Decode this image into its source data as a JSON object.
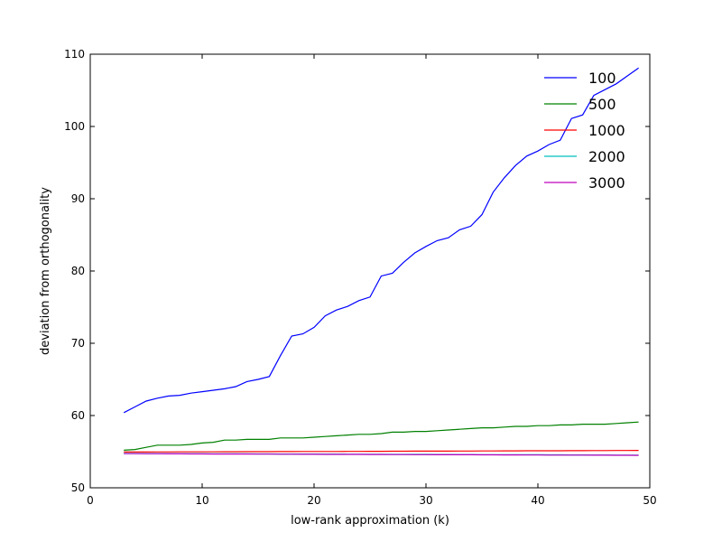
{
  "chart_data": {
    "type": "line",
    "title": "",
    "xlabel": "low-rank approximation (k)",
    "ylabel": "deviation from orthogonality",
    "xlim": [
      0,
      50
    ],
    "ylim": [
      50,
      110
    ],
    "xticks": [
      0,
      10,
      20,
      30,
      40,
      50
    ],
    "yticks": [
      50,
      60,
      70,
      80,
      90,
      100,
      110
    ],
    "grid": false,
    "legend_position": "top-right",
    "x": [
      3,
      4,
      5,
      6,
      7,
      8,
      9,
      10,
      11,
      12,
      13,
      14,
      15,
      16,
      17,
      18,
      19,
      20,
      21,
      22,
      23,
      24,
      25,
      26,
      27,
      28,
      29,
      30,
      31,
      32,
      33,
      34,
      35,
      36,
      37,
      38,
      39,
      40,
      41,
      42,
      43,
      44,
      45,
      46,
      47,
      48,
      49
    ],
    "series": [
      {
        "name": "100",
        "color": "#0000ff",
        "values": [
          60.4,
          61.2,
          62.0,
          62.4,
          62.7,
          62.8,
          63.1,
          63.3,
          63.5,
          63.7,
          64.0,
          64.7,
          65.0,
          65.4,
          68.3,
          71.0,
          71.3,
          72.2,
          73.8,
          74.6,
          75.1,
          75.9,
          76.4,
          79.3,
          79.7,
          81.2,
          82.5,
          83.4,
          84.2,
          84.6,
          85.7,
          86.2,
          87.8,
          90.9,
          92.9,
          94.6,
          95.9,
          96.6,
          97.5,
          98.1,
          101.1,
          101.6,
          104.3,
          105.1,
          105.9,
          107.0,
          108.1
        ]
      },
      {
        "name": "500",
        "color": "#008000",
        "values": [
          55.2,
          55.3,
          55.6,
          55.9,
          55.9,
          55.9,
          56.0,
          56.2,
          56.3,
          56.6,
          56.6,
          56.7,
          56.7,
          56.7,
          56.9,
          56.9,
          56.9,
          57.0,
          57.1,
          57.2,
          57.3,
          57.4,
          57.4,
          57.5,
          57.7,
          57.7,
          57.8,
          57.8,
          57.9,
          58.0,
          58.1,
          58.2,
          58.3,
          58.3,
          58.4,
          58.5,
          58.5,
          58.6,
          58.6,
          58.7,
          58.7,
          58.8,
          58.8,
          58.8,
          58.9,
          59.0,
          59.1
        ]
      },
      {
        "name": "1000",
        "color": "#ff0000",
        "values": [
          54.95,
          54.95,
          54.95,
          54.96,
          54.96,
          54.97,
          54.97,
          54.98,
          54.98,
          54.99,
          54.99,
          55.0,
          55.0,
          55.0,
          55.01,
          55.01,
          55.02,
          55.02,
          55.03,
          55.03,
          55.04,
          55.04,
          55.05,
          55.05,
          55.06,
          55.06,
          55.07,
          55.07,
          55.08,
          55.08,
          55.09,
          55.09,
          55.1,
          55.1,
          55.11,
          55.11,
          55.12,
          55.12,
          55.13,
          55.13,
          55.14,
          55.14,
          55.15,
          55.15,
          55.16,
          55.16,
          55.17
        ]
      },
      {
        "name": "2000",
        "color": "#00bfbf",
        "values": [
          54.75,
          54.75,
          54.74,
          54.74,
          54.73,
          54.73,
          54.72,
          54.72,
          54.71,
          54.71,
          54.7,
          54.7,
          54.69,
          54.69,
          54.68,
          54.68,
          54.67,
          54.67,
          54.66,
          54.66,
          54.65,
          54.65,
          54.64,
          54.64,
          54.63,
          54.63,
          54.62,
          54.62,
          54.61,
          54.61,
          54.6,
          54.6,
          54.59,
          54.59,
          54.58,
          54.58,
          54.57,
          54.57,
          54.56,
          54.56,
          54.55,
          54.55,
          54.54,
          54.54,
          54.53,
          54.53,
          54.52
        ]
      },
      {
        "name": "3000",
        "color": "#bf00bf",
        "values": [
          54.72,
          54.72,
          54.71,
          54.71,
          54.7,
          54.7,
          54.69,
          54.69,
          54.68,
          54.68,
          54.67,
          54.67,
          54.66,
          54.66,
          54.65,
          54.65,
          54.64,
          54.64,
          54.63,
          54.63,
          54.62,
          54.62,
          54.61,
          54.61,
          54.6,
          54.6,
          54.59,
          54.59,
          54.58,
          54.58,
          54.57,
          54.57,
          54.56,
          54.56,
          54.55,
          54.55,
          54.54,
          54.54,
          54.53,
          54.53,
          54.52,
          54.52,
          54.51,
          54.51,
          54.5,
          54.5,
          54.49
        ]
      }
    ]
  }
}
